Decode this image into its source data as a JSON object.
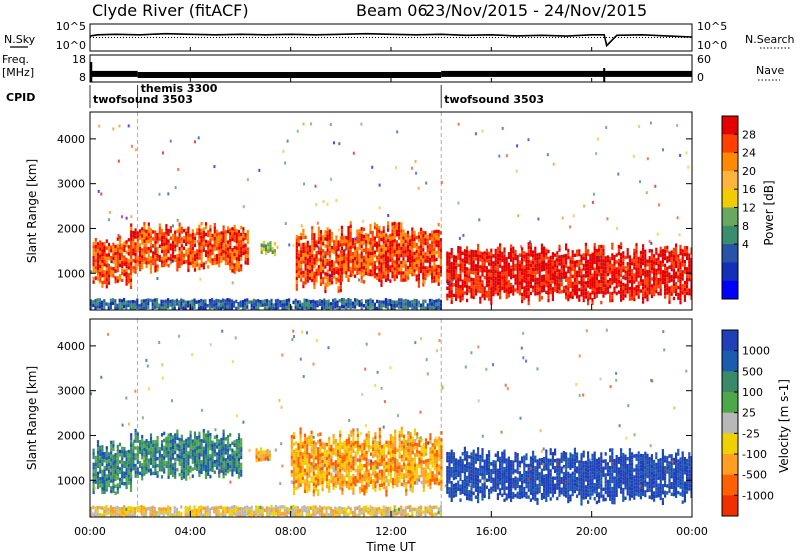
{
  "header": {
    "station": "Clyde River (fitACF)",
    "beam": "Beam 06",
    "dates": "23/Nov/2015 - 24/Nov/2015"
  },
  "side_labels": {
    "nsky": "N.Sky",
    "freq_top": "Freq.",
    "freq_unit": "[MHz]",
    "cpid": "CPID",
    "nsearch": "N.Search",
    "nave": "Nave"
  },
  "chart_data": [
    {
      "panel": "noise",
      "type": "line",
      "left_ticks": [
        "10^5",
        "10^0"
      ],
      "right_ticks": [
        "10^5",
        "10^0"
      ],
      "series": [
        {
          "name": "N.Sky",
          "style": "solid",
          "x_hours": [
            0,
            0.3,
            1,
            2,
            3,
            4,
            5,
            6,
            7,
            8,
            9,
            10,
            11,
            12,
            13,
            14,
            15,
            16,
            17,
            18,
            19,
            20,
            20.5,
            20.6,
            21,
            22,
            23,
            24
          ],
          "y_frac": [
            0.55,
            0.6,
            0.62,
            0.6,
            0.64,
            0.62,
            0.6,
            0.62,
            0.6,
            0.62,
            0.6,
            0.62,
            0.64,
            0.62,
            0.6,
            0.62,
            0.58,
            0.6,
            0.56,
            0.58,
            0.55,
            0.6,
            0.6,
            0.2,
            0.58,
            0.6,
            0.56,
            0.52
          ]
        },
        {
          "name": "N.Search",
          "style": "dotted",
          "x_hours": [
            0,
            4,
            8,
            12,
            16,
            20,
            24
          ],
          "y_frac": [
            0.5,
            0.5,
            0.5,
            0.5,
            0.5,
            0.5,
            0.5
          ]
        }
      ]
    },
    {
      "panel": "frequency",
      "type": "line",
      "left_ticks": [
        "18",
        "8"
      ],
      "right_ticks": [
        "60",
        "0"
      ],
      "series": [
        {
          "name": "Freq.",
          "style": "band",
          "segments": [
            [
              0.05,
              1.9,
              11
            ],
            [
              1.9,
              14.0,
              10.6
            ],
            [
              14.0,
              24.0,
              11
            ]
          ]
        },
        {
          "name": "Nave",
          "style": "dotted",
          "x_hours": [
            0,
            24
          ],
          "y_value": [
            0,
            0
          ]
        }
      ]
    },
    {
      "panel": "cpid",
      "type": "table",
      "segments": [
        {
          "start_hour": 0.0,
          "label": "twofsound 3503"
        },
        {
          "start_hour": 1.9,
          "label": "themis 3300"
        },
        {
          "start_hour": 14.0,
          "label": "twofsound 3503"
        }
      ]
    },
    {
      "panel": "power",
      "type": "heatmap",
      "ylabel": "Slant Range [km]",
      "ylim": [
        180,
        4600
      ],
      "y_ticks": [
        1000,
        2000,
        3000,
        4000
      ],
      "colorbar": {
        "label": "Power [dB]",
        "ticks": [
          "28",
          "24",
          "20",
          "16",
          "12",
          "8",
          "4"
        ],
        "colors": [
          "#e40000",
          "#ff4000",
          "#ff8a00",
          "#ffb43c",
          "#f0cc00",
          "#68a860",
          "#3c8c70",
          "#2854a8",
          "#1430b8",
          "#0000ff"
        ]
      },
      "blobs": [
        {
          "x": [
            0.1,
            1.6
          ],
          "y": [
            700,
            1900
          ],
          "color_index": 1
        },
        {
          "x": [
            1.6,
            6.3
          ],
          "y": [
            1050,
            2150
          ],
          "color_index": 1
        },
        {
          "x": [
            6.8,
            7.4
          ],
          "y": [
            1400,
            1750
          ],
          "color_index": 5
        },
        {
          "x": [
            8.2,
            10.0
          ],
          "y": [
            600,
            2100
          ],
          "color_index": 1
        },
        {
          "x": [
            10.0,
            14.0
          ],
          "y": [
            700,
            2200
          ],
          "color_index": 1
        },
        {
          "x": [
            14.2,
            24.0
          ],
          "y": [
            350,
            1700
          ],
          "color_index": 0
        },
        {
          "x": [
            0.0,
            14.0
          ],
          "y": [
            200,
            450
          ],
          "color_index": 7
        }
      ]
    },
    {
      "panel": "velocity",
      "type": "heatmap",
      "xlabel": "Time UT",
      "ylabel": "Slant Range [km]",
      "ylim": [
        180,
        4600
      ],
      "y_ticks": [
        1000,
        2000,
        3000,
        4000
      ],
      "x_ticks": [
        "00:00",
        "04:00",
        "08:00",
        "12:00",
        "16:00",
        "20:00",
        "00:00"
      ],
      "colorbar": {
        "label": "Velocity [m s-1]",
        "ticks": [
          "1000",
          "500",
          "100",
          "25",
          "-25",
          "-100",
          "-500",
          "-1000"
        ],
        "colors": [
          "#2040b8",
          "#1c5cb0",
          "#3a8a6a",
          "#4ca848",
          "#b8b8b8",
          "#f0d000",
          "#ffa020",
          "#ff6000",
          "#f03000"
        ]
      },
      "blobs": [
        {
          "x": [
            0.1,
            1.6
          ],
          "y": [
            700,
            1900
          ],
          "color_index": 2
        },
        {
          "x": [
            1.6,
            6.0
          ],
          "y": [
            1050,
            2150
          ],
          "color_index": 2
        },
        {
          "x": [
            6.6,
            7.2
          ],
          "y": [
            1400,
            1750
          ],
          "color_index": 6
        },
        {
          "x": [
            8.0,
            14.0
          ],
          "y": [
            700,
            2200
          ],
          "color_index": 6
        },
        {
          "x": [
            14.2,
            24.0
          ],
          "y": [
            500,
            1750
          ],
          "color_index": 0
        },
        {
          "x": [
            0.0,
            14.0
          ],
          "y": [
            200,
            450
          ],
          "color_index": 5
        }
      ]
    }
  ]
}
